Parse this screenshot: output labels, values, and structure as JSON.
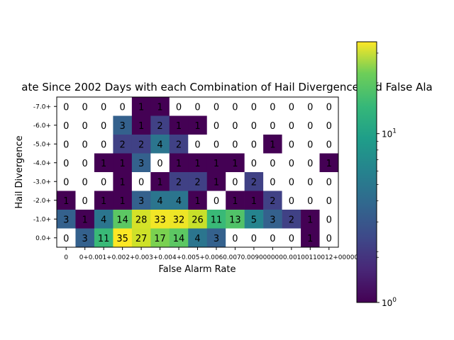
{
  "chart_data": {
    "type": "heatmap",
    "title": "ate Since 2002 Days with each Combination of Hail Divergence and False Ala",
    "xlabel": "False Alarm Rate",
    "ylabel": "Hail Divergence",
    "x_categories": [
      "0",
      "0+",
      "0.001+",
      "0.002+",
      "0.003+",
      "0.004+",
      "0.005+",
      "0.006+",
      "0.007+",
      "0.008+",
      "0.009+",
      "0.01+",
      "0.011+",
      "0.012+",
      "1+"
    ],
    "x_tick_labels_as_rendered": [
      "0",
      "0+0.001+0.002+0.003+0.004+0.005+0.0060.0070.0090000000.00100110012+000000001+"
    ],
    "y_categories": [
      "-7.0+",
      "-6.0+",
      "-5.0+",
      "-4.0+",
      "-3.0+",
      "-2.0+",
      "-1.0+",
      "0.0+"
    ],
    "values": [
      [
        0,
        0,
        0,
        0,
        1,
        1,
        0,
        0,
        0,
        0,
        0,
        0,
        0,
        0,
        0
      ],
      [
        0,
        0,
        0,
        3,
        1,
        2,
        1,
        1,
        0,
        0,
        0,
        0,
        0,
        0,
        0
      ],
      [
        0,
        0,
        0,
        2,
        2,
        4,
        2,
        0,
        0,
        0,
        0,
        1,
        0,
        0,
        0
      ],
      [
        0,
        0,
        1,
        1,
        3,
        0,
        1,
        1,
        1,
        1,
        0,
        0,
        0,
        0,
        1
      ],
      [
        0,
        0,
        0,
        1,
        0,
        1,
        2,
        2,
        1,
        0,
        2,
        0,
        0,
        0,
        0
      ],
      [
        1,
        0,
        1,
        1,
        3,
        4,
        4,
        1,
        0,
        1,
        1,
        2,
        0,
        0,
        0
      ],
      [
        3,
        1,
        4,
        14,
        28,
        33,
        32,
        26,
        11,
        13,
        5,
        3,
        2,
        1,
        0
      ],
      [
        0,
        3,
        11,
        35,
        27,
        17,
        14,
        4,
        3,
        0,
        0,
        0,
        0,
        1,
        0
      ]
    ],
    "color_scale": "log",
    "colormap": "viridis",
    "colorbar": {
      "min": 1,
      "max": 35,
      "tick_labels": [
        "10^0",
        "10^1"
      ]
    },
    "zero_color": "#ffffff",
    "grid": false
  }
}
